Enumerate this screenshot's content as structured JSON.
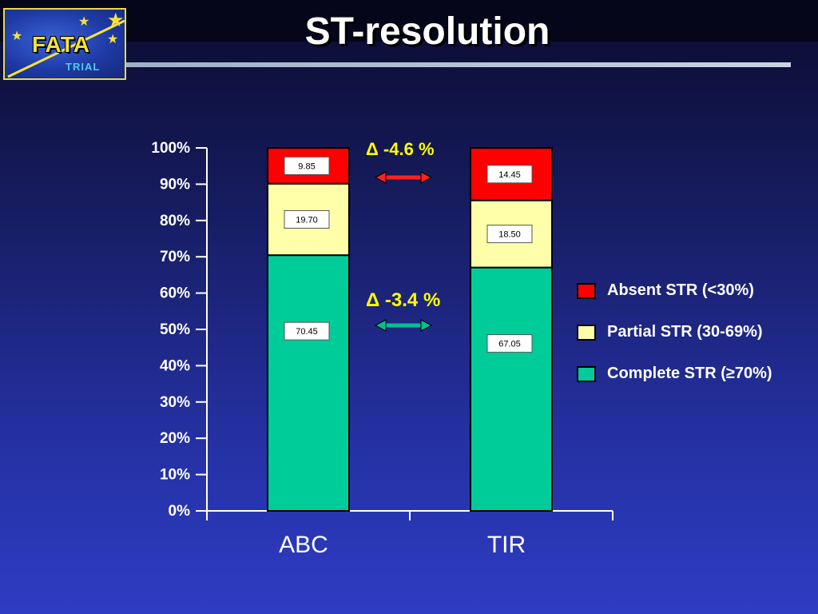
{
  "slide": {
    "title": "ST-resolution"
  },
  "logo": {
    "brand": "FATA",
    "subtitle": "TRIAL"
  },
  "annotations": [
    {
      "text": "Δ -4.6 %",
      "arrow_color": "#ff2020"
    },
    {
      "text": "Δ -3.4 %",
      "arrow_color": "#00c090"
    }
  ],
  "chart_data": {
    "type": "bar",
    "stacked": true,
    "title": "",
    "xlabel": "",
    "ylabel": "",
    "categories": [
      "ABC",
      "TIR"
    ],
    "series": [
      {
        "name": "Complete STR (≥70%)",
        "values": [
          70.45,
          67.05
        ],
        "labels": [
          "70.45",
          "67.05"
        ],
        "color": "#00cc99"
      },
      {
        "name": "Partial STR (30-69%)",
        "values": [
          19.7,
          18.5
        ],
        "labels": [
          "19.70",
          "18.50"
        ],
        "color": "#ffffaa"
      },
      {
        "name": "Absent STR (<30%)",
        "values": [
          9.85,
          14.45
        ],
        "labels": [
          "9.85",
          "14.45"
        ],
        "color": "#ff0000"
      }
    ],
    "ylim": [
      0,
      100
    ],
    "yticks": [
      "0%",
      "10%",
      "20%",
      "30%",
      "40%",
      "50%",
      "60%",
      "70%",
      "80%",
      "90%",
      "100%"
    ],
    "grid": false,
    "legend_position": "right",
    "legend_order": [
      "Absent STR (<30%)",
      "Partial STR (30-69%)",
      "Complete STR (≥70%)"
    ]
  },
  "colors": {
    "background_top": "#0b0b2e",
    "background_bottom": "#2e3cc4",
    "title": "#ffffff",
    "annotation": "#ffff00",
    "axis": "#ffffff"
  }
}
